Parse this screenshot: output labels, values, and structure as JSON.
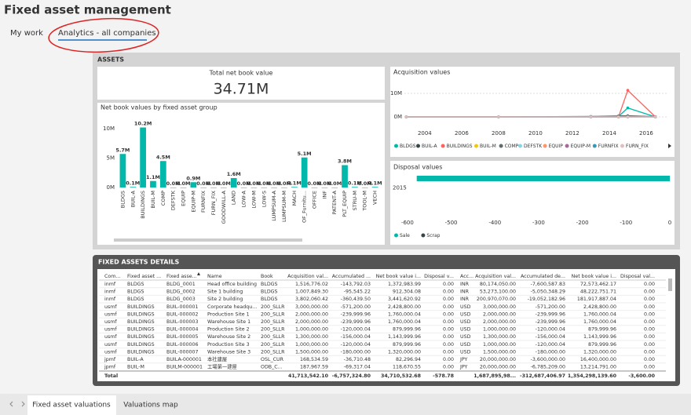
{
  "header": {
    "title": "Fixed asset management"
  },
  "tabs": [
    "My work",
    "Analytics - all companies"
  ],
  "section": "ASSETS",
  "kpi": {
    "label": "Total net book value",
    "value": "34.71M"
  },
  "chart_data": [
    {
      "type": "bar",
      "title": "Net book values by fixed asset group",
      "categories": [
        "BLDGS",
        "BUIL-A",
        "BUILDINGS",
        "BUIL-M",
        "COMP",
        "DEFSTK",
        "EQUIP",
        "EQUIP-M",
        "FURNFIX",
        "FURN_FIX",
        "GOODWILL-A",
        "LAND",
        "LOW-A",
        "LOW-M",
        "LOW-S",
        "LUMPSUM-A",
        "LUMPSUM-M",
        "MACH",
        "OF_Furnitu...",
        "OFFICE",
        "INF",
        "PATENT-A",
        "PLT_EQUIP",
        "STRU-M",
        "TOOL-M",
        "VECH"
      ],
      "values": [
        5.7,
        0.1,
        10.2,
        1.1,
        4.5,
        0.0,
        0.0,
        0.9,
        0.0,
        0.0,
        0.0,
        1.6,
        0.0,
        0.0,
        0.0,
        0.0,
        0.0,
        0.1,
        5.1,
        0.0,
        0.0,
        0.0,
        3.8,
        0.1,
        0.0,
        0.1
      ],
      "value_labels": [
        "5.7M",
        "0.1M",
        "10.2M",
        "1.1M",
        "4.5M",
        "0.0M",
        "0.0M",
        "0.9M",
        "0.0M",
        "0.0M",
        "0.0M",
        "1.6M",
        "0.0M",
        "0.0M",
        "0.0M",
        "0.0M",
        "0.0M",
        "0.1M",
        "5.1M",
        "0.0M",
        "0.0M",
        "0.0M",
        "3.8M",
        "0.1M",
        "0.0M",
        "0.1M"
      ],
      "color": "#01b8aa",
      "ylim": [
        0,
        12
      ],
      "yticks": [
        {
          "value": 0,
          "label": "0M"
        },
        {
          "value": 5,
          "label": "5M"
        },
        {
          "value": 10,
          "label": "10M"
        }
      ],
      "grid": false
    },
    {
      "type": "line",
      "title": "Acquisition values",
      "x": [
        2003,
        2008,
        2013,
        2014.5,
        2015,
        2016.5
      ],
      "series": [
        {
          "name": "BLDGS",
          "color": "#01b8aa",
          "values": [
            0,
            0,
            0,
            0.2,
            3.8,
            0
          ]
        },
        {
          "name": "BUIL-A",
          "color": "#374649",
          "values": [
            0,
            0,
            0,
            0,
            0.2,
            0
          ]
        },
        {
          "name": "BUILDINGS",
          "color": "#fd625e",
          "values": [
            0,
            0,
            0,
            0,
            11.3,
            0
          ]
        },
        {
          "name": "BUIL-M",
          "color": "#f2c80f",
          "values": [
            0,
            0,
            0,
            0,
            0.1,
            0
          ]
        },
        {
          "name": "COMP",
          "color": "#5f6b6d",
          "values": [
            0,
            0,
            0.2,
            0.4,
            0.5,
            0.1
          ]
        },
        {
          "name": "DEFSTK",
          "color": "#8ad4eb",
          "values": [
            0,
            0,
            0,
            0,
            0,
            0
          ]
        },
        {
          "name": "EQUIP",
          "color": "#fe9666",
          "values": [
            0,
            0,
            0,
            0,
            0,
            0
          ]
        },
        {
          "name": "EQUIP-M",
          "color": "#a66999",
          "values": [
            0,
            0,
            0,
            0,
            0,
            0
          ]
        },
        {
          "name": "FURNFIX",
          "color": "#3599b8",
          "values": [
            0,
            0,
            0,
            0,
            0,
            0
          ]
        },
        {
          "name": "FURN_FIX",
          "color": "#dfbfbf",
          "values": [
            0,
            0,
            0,
            0,
            0,
            0
          ]
        }
      ],
      "xlim": [
        2002.9,
        2017.15
      ],
      "xticks": [
        2004,
        2006,
        2008,
        2010,
        2012,
        2014,
        2016
      ],
      "ylim": [
        0,
        12
      ],
      "yticks": [
        {
          "value": 0,
          "label": "0M"
        },
        {
          "value": 10,
          "label": "10M"
        }
      ],
      "grid": true
    },
    {
      "type": "bar",
      "orientation": "horizontal",
      "title": "Disposal values",
      "categories": [
        "2015"
      ],
      "series": [
        {
          "name": "Sale",
          "color": "#01b8aa",
          "values": [
            -578.78
          ]
        },
        {
          "name": "Scrap",
          "color": "#374649",
          "values": [
            null
          ]
        }
      ],
      "xlim": [
        -607,
        0
      ],
      "xticks": [
        -600,
        -500,
        -400,
        -300,
        -200,
        -100,
        0
      ]
    }
  ],
  "table": {
    "title": "FIXED ASSETS DETAILS",
    "columns": [
      "Com...",
      "Fixed asset ...",
      "Fixed asse...",
      "Name",
      "Book",
      "Acquisition val...",
      "Accumulated ...",
      "Net book value i...",
      "Disposal v...",
      "Acc...",
      "Acquisition val...",
      "Accumulated de...",
      "Net book value i...",
      "Disposal val..."
    ],
    "rows": [
      [
        "inmf",
        "BLDGS",
        "BLDG_0001",
        "Head office building",
        "BLDGS",
        "1,516,776.02",
        "-143,792.03",
        "1,372,983.99",
        "0.00",
        "INR",
        "80,174,050.00",
        "-7,600,587.83",
        "72,573,462.17",
        "0.00"
      ],
      [
        "inmf",
        "BLDGS",
        "BLDG_0002",
        "Site 1 building",
        "BLDGS",
        "1,007,849.30",
        "-95,545.22",
        "912,304.08",
        "0.00",
        "INR",
        "53,273,100.00",
        "-5,050,348.29",
        "48,222,751.71",
        "0.00"
      ],
      [
        "inmf",
        "BLDGS",
        "BLDG_0003",
        "Site 2 building",
        "BLDGS",
        "3,802,060.42",
        "-360,439.50",
        "3,441,620.92",
        "0.00",
        "INR",
        "200,970,070.00",
        "-19,052,182.96",
        "181,917,887.04",
        "0.00"
      ],
      [
        "usmf",
        "BUILDINGS",
        "BUIL-000001",
        "Corporate headqu...",
        "200_SLLR",
        "3,000,000.00",
        "-571,200.00",
        "2,428,800.00",
        "0.00",
        "USD",
        "3,000,000.00",
        "-571,200.00",
        "2,428,800.00",
        "0.00"
      ],
      [
        "usmf",
        "BUILDINGS",
        "BUIL-000002",
        "Production Site 1",
        "200_SLLR",
        "2,000,000.00",
        "-239,999.96",
        "1,760,000.04",
        "0.00",
        "USD",
        "2,000,000.00",
        "-239,999.96",
        "1,760,000.04",
        "0.00"
      ],
      [
        "usmf",
        "BUILDINGS",
        "BUIL-000003",
        "Warehouse Site 1",
        "200_SLLR",
        "2,000,000.00",
        "-239,999.96",
        "1,760,000.04",
        "0.00",
        "USD",
        "2,000,000.00",
        "-239,999.96",
        "1,760,000.04",
        "0.00"
      ],
      [
        "usmf",
        "BUILDINGS",
        "BUIL-000004",
        "Production Site 2",
        "200_SLLR",
        "1,000,000.00",
        "-120,000.04",
        "879,999.96",
        "0.00",
        "USD",
        "1,000,000.00",
        "-120,000.04",
        "879,999.96",
        "0.00"
      ],
      [
        "usmf",
        "BUILDINGS",
        "BUIL-000005",
        "Warehouse Site 2",
        "200_SLLR",
        "1,300,000.00",
        "-156,000.04",
        "1,143,999.96",
        "0.00",
        "USD",
        "1,300,000.00",
        "-156,000.04",
        "1,143,999.96",
        "0.00"
      ],
      [
        "usmf",
        "BUILDINGS",
        "BUIL-000006",
        "Production Site 3",
        "200_SLLR",
        "1,000,000.00",
        "-120,000.04",
        "879,999.96",
        "0.00",
        "USD",
        "1,000,000.00",
        "-120,000.04",
        "879,999.96",
        "0.00"
      ],
      [
        "usmf",
        "BUILDINGS",
        "BUIL-000007",
        "Warehouse Site 3",
        "200_SLLR",
        "1,500,000.00",
        "-180,000.00",
        "1,320,000.00",
        "0.00",
        "USD",
        "1,500,000.00",
        "-180,000.00",
        "1,320,000.00",
        "0.00"
      ],
      [
        "jpmf",
        "BUIL-A",
        "BUILA-000001",
        "本社建屋",
        "OSL_CUR",
        "168,534.59",
        "-36,710.48",
        "82,296.94",
        "0.00",
        "JPY",
        "20,000,000.00",
        "-3,600,000.00",
        "16,400,000.00",
        "0.00"
      ],
      [
        "jpmf",
        "BUIL-M",
        "BUILM-000001",
        "工場第一建屋",
        "ODB_C...",
        "187,967.59",
        "-69,317.04",
        "118,670.55",
        "0.00",
        "JPY",
        "20,000,000.00",
        "-6,785,209.00",
        "13,214,791.00",
        "0.00"
      ]
    ],
    "total": {
      "label": "Total",
      "cells": [
        "41,713,542.10",
        "-6,757,324.80",
        "34,710,532.68",
        "-578.78",
        "1,687,895,98...",
        "-312,687,406.97",
        "1,354,298,139.60",
        "-3,600.00"
      ]
    }
  },
  "bottom_tabs": [
    "Fixed asset valuations",
    "Valuations map"
  ]
}
